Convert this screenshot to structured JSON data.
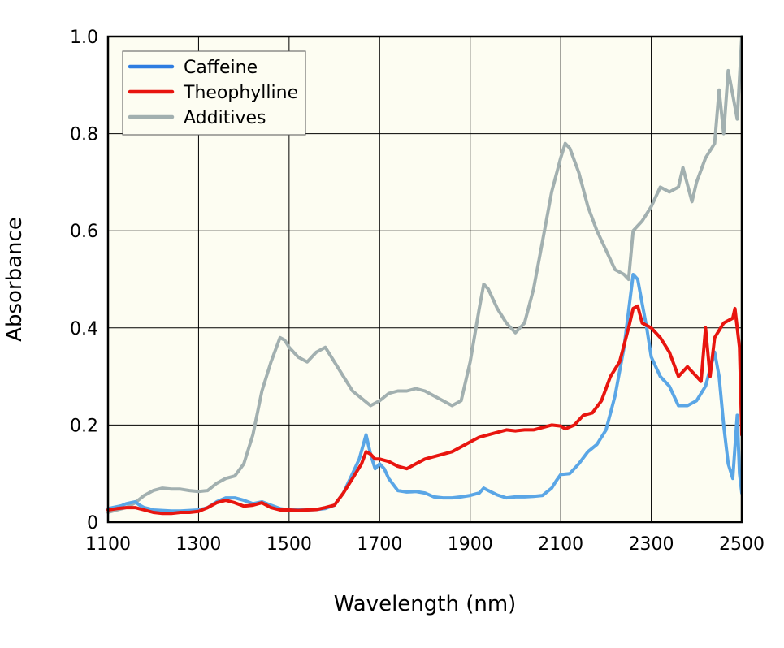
{
  "chart_data": {
    "type": "line",
    "xlabel": "Wavelength (nm)",
    "ylabel": "Absorbance",
    "xlim": [
      1100,
      2500
    ],
    "ylim": [
      0,
      1.0
    ],
    "x_ticks": [
      "1100",
      "1300",
      "1500",
      "1700",
      "1900",
      "2100",
      "2300",
      "2500"
    ],
    "y_ticks": [
      "0",
      "0.2",
      "0.4",
      "0.6",
      "0.8",
      "1.0"
    ],
    "grid": true,
    "legend_position": "top-left",
    "plot_background": "#fdfdf2",
    "series": [
      {
        "name": "Caffeine",
        "color": "#5aa6e6",
        "legend_color": "#2f7de1",
        "points": [
          [
            1100,
            0.028
          ],
          [
            1110,
            0.03
          ],
          [
            1120,
            0.032
          ],
          [
            1130,
            0.034
          ],
          [
            1140,
            0.038
          ],
          [
            1150,
            0.04
          ],
          [
            1160,
            0.042
          ],
          [
            1170,
            0.035
          ],
          [
            1180,
            0.03
          ],
          [
            1190,
            0.028
          ],
          [
            1200,
            0.025
          ],
          [
            1220,
            0.024
          ],
          [
            1240,
            0.023
          ],
          [
            1260,
            0.023
          ],
          [
            1280,
            0.024
          ],
          [
            1300,
            0.025
          ],
          [
            1320,
            0.03
          ],
          [
            1340,
            0.042
          ],
          [
            1360,
            0.05
          ],
          [
            1380,
            0.05
          ],
          [
            1400,
            0.045
          ],
          [
            1420,
            0.038
          ],
          [
            1440,
            0.042
          ],
          [
            1460,
            0.035
          ],
          [
            1480,
            0.028
          ],
          [
            1500,
            0.025
          ],
          [
            1520,
            0.025
          ],
          [
            1540,
            0.025
          ],
          [
            1560,
            0.026
          ],
          [
            1580,
            0.028
          ],
          [
            1600,
            0.035
          ],
          [
            1620,
            0.06
          ],
          [
            1640,
            0.1
          ],
          [
            1655,
            0.13
          ],
          [
            1670,
            0.18
          ],
          [
            1680,
            0.14
          ],
          [
            1690,
            0.11
          ],
          [
            1700,
            0.12
          ],
          [
            1710,
            0.11
          ],
          [
            1720,
            0.09
          ],
          [
            1740,
            0.065
          ],
          [
            1760,
            0.062
          ],
          [
            1780,
            0.063
          ],
          [
            1800,
            0.06
          ],
          [
            1820,
            0.052
          ],
          [
            1840,
            0.05
          ],
          [
            1860,
            0.05
          ],
          [
            1880,
            0.052
          ],
          [
            1900,
            0.055
          ],
          [
            1920,
            0.06
          ],
          [
            1930,
            0.07
          ],
          [
            1940,
            0.065
          ],
          [
            1960,
            0.056
          ],
          [
            1980,
            0.05
          ],
          [
            2000,
            0.052
          ],
          [
            2020,
            0.052
          ],
          [
            2040,
            0.053
          ],
          [
            2060,
            0.055
          ],
          [
            2080,
            0.07
          ],
          [
            2090,
            0.085
          ],
          [
            2100,
            0.098
          ],
          [
            2120,
            0.1
          ],
          [
            2140,
            0.12
          ],
          [
            2160,
            0.145
          ],
          [
            2180,
            0.16
          ],
          [
            2200,
            0.19
          ],
          [
            2220,
            0.26
          ],
          [
            2240,
            0.36
          ],
          [
            2260,
            0.51
          ],
          [
            2270,
            0.5
          ],
          [
            2280,
            0.45
          ],
          [
            2290,
            0.4
          ],
          [
            2300,
            0.34
          ],
          [
            2320,
            0.3
          ],
          [
            2340,
            0.28
          ],
          [
            2360,
            0.24
          ],
          [
            2380,
            0.24
          ],
          [
            2400,
            0.25
          ],
          [
            2420,
            0.28
          ],
          [
            2440,
            0.35
          ],
          [
            2450,
            0.3
          ],
          [
            2460,
            0.2
          ],
          [
            2470,
            0.12
          ],
          [
            2480,
            0.09
          ],
          [
            2490,
            0.22
          ],
          [
            2495,
            0.1
          ],
          [
            2500,
            0.06
          ]
        ]
      },
      {
        "name": "Theophylline",
        "color": "#e8150f",
        "legend_color": "#e8150f",
        "points": [
          [
            1100,
            0.025
          ],
          [
            1120,
            0.028
          ],
          [
            1140,
            0.03
          ],
          [
            1160,
            0.03
          ],
          [
            1180,
            0.025
          ],
          [
            1200,
            0.02
          ],
          [
            1220,
            0.018
          ],
          [
            1240,
            0.018
          ],
          [
            1260,
            0.02
          ],
          [
            1280,
            0.02
          ],
          [
            1300,
            0.022
          ],
          [
            1320,
            0.03
          ],
          [
            1340,
            0.04
          ],
          [
            1360,
            0.045
          ],
          [
            1380,
            0.04
          ],
          [
            1400,
            0.033
          ],
          [
            1420,
            0.035
          ],
          [
            1440,
            0.04
          ],
          [
            1460,
            0.03
          ],
          [
            1480,
            0.025
          ],
          [
            1500,
            0.025
          ],
          [
            1520,
            0.024
          ],
          [
            1540,
            0.025
          ],
          [
            1560,
            0.026
          ],
          [
            1580,
            0.03
          ],
          [
            1600,
            0.035
          ],
          [
            1620,
            0.06
          ],
          [
            1640,
            0.09
          ],
          [
            1660,
            0.12
          ],
          [
            1670,
            0.145
          ],
          [
            1680,
            0.14
          ],
          [
            1690,
            0.13
          ],
          [
            1700,
            0.13
          ],
          [
            1720,
            0.125
          ],
          [
            1740,
            0.115
          ],
          [
            1760,
            0.11
          ],
          [
            1780,
            0.12
          ],
          [
            1800,
            0.13
          ],
          [
            1820,
            0.135
          ],
          [
            1840,
            0.14
          ],
          [
            1860,
            0.145
          ],
          [
            1880,
            0.155
          ],
          [
            1900,
            0.165
          ],
          [
            1920,
            0.175
          ],
          [
            1940,
            0.18
          ],
          [
            1960,
            0.185
          ],
          [
            1980,
            0.19
          ],
          [
            2000,
            0.188
          ],
          [
            2020,
            0.19
          ],
          [
            2040,
            0.19
          ],
          [
            2060,
            0.195
          ],
          [
            2080,
            0.2
          ],
          [
            2100,
            0.198
          ],
          [
            2110,
            0.192
          ],
          [
            2130,
            0.2
          ],
          [
            2150,
            0.22
          ],
          [
            2170,
            0.225
          ],
          [
            2190,
            0.25
          ],
          [
            2210,
            0.3
          ],
          [
            2230,
            0.33
          ],
          [
            2250,
            0.4
          ],
          [
            2260,
            0.44
          ],
          [
            2270,
            0.445
          ],
          [
            2280,
            0.41
          ],
          [
            2300,
            0.4
          ],
          [
            2320,
            0.38
          ],
          [
            2340,
            0.35
          ],
          [
            2360,
            0.3
          ],
          [
            2380,
            0.32
          ],
          [
            2400,
            0.3
          ],
          [
            2410,
            0.29
          ],
          [
            2420,
            0.4
          ],
          [
            2430,
            0.3
          ],
          [
            2440,
            0.38
          ],
          [
            2460,
            0.41
          ],
          [
            2480,
            0.42
          ],
          [
            2485,
            0.44
          ],
          [
            2495,
            0.36
          ],
          [
            2500,
            0.18
          ]
        ]
      },
      {
        "name": "Additives",
        "color": "#a2b0b0",
        "legend_color": "#a2b0b0",
        "points": [
          [
            1100,
            0.02
          ],
          [
            1120,
            0.025
          ],
          [
            1140,
            0.03
          ],
          [
            1160,
            0.04
          ],
          [
            1180,
            0.055
          ],
          [
            1200,
            0.065
          ],
          [
            1220,
            0.07
          ],
          [
            1240,
            0.068
          ],
          [
            1260,
            0.068
          ],
          [
            1280,
            0.065
          ],
          [
            1300,
            0.063
          ],
          [
            1320,
            0.065
          ],
          [
            1340,
            0.08
          ],
          [
            1360,
            0.09
          ],
          [
            1380,
            0.095
          ],
          [
            1400,
            0.12
          ],
          [
            1420,
            0.18
          ],
          [
            1440,
            0.27
          ],
          [
            1460,
            0.33
          ],
          [
            1480,
            0.38
          ],
          [
            1490,
            0.375
          ],
          [
            1500,
            0.36
          ],
          [
            1520,
            0.34
          ],
          [
            1540,
            0.33
          ],
          [
            1560,
            0.35
          ],
          [
            1580,
            0.36
          ],
          [
            1600,
            0.33
          ],
          [
            1620,
            0.3
          ],
          [
            1640,
            0.27
          ],
          [
            1660,
            0.255
          ],
          [
            1680,
            0.24
          ],
          [
            1700,
            0.25
          ],
          [
            1720,
            0.265
          ],
          [
            1740,
            0.27
          ],
          [
            1760,
            0.27
          ],
          [
            1780,
            0.275
          ],
          [
            1800,
            0.27
          ],
          [
            1820,
            0.26
          ],
          [
            1840,
            0.25
          ],
          [
            1860,
            0.24
          ],
          [
            1880,
            0.25
          ],
          [
            1900,
            0.33
          ],
          [
            1920,
            0.44
          ],
          [
            1930,
            0.49
          ],
          [
            1940,
            0.48
          ],
          [
            1960,
            0.44
          ],
          [
            1980,
            0.41
          ],
          [
            2000,
            0.39
          ],
          [
            2020,
            0.41
          ],
          [
            2040,
            0.48
          ],
          [
            2060,
            0.58
          ],
          [
            2080,
            0.68
          ],
          [
            2100,
            0.75
          ],
          [
            2110,
            0.78
          ],
          [
            2120,
            0.77
          ],
          [
            2140,
            0.72
          ],
          [
            2160,
            0.65
          ],
          [
            2180,
            0.6
          ],
          [
            2200,
            0.56
          ],
          [
            2220,
            0.52
          ],
          [
            2240,
            0.51
          ],
          [
            2250,
            0.5
          ],
          [
            2260,
            0.6
          ],
          [
            2280,
            0.62
          ],
          [
            2300,
            0.65
          ],
          [
            2320,
            0.69
          ],
          [
            2340,
            0.68
          ],
          [
            2360,
            0.69
          ],
          [
            2370,
            0.73
          ],
          [
            2390,
            0.66
          ],
          [
            2400,
            0.7
          ],
          [
            2420,
            0.75
          ],
          [
            2440,
            0.78
          ],
          [
            2450,
            0.89
          ],
          [
            2460,
            0.8
          ],
          [
            2470,
            0.93
          ],
          [
            2480,
            0.88
          ],
          [
            2490,
            0.83
          ],
          [
            2500,
            1.0
          ]
        ]
      }
    ]
  }
}
